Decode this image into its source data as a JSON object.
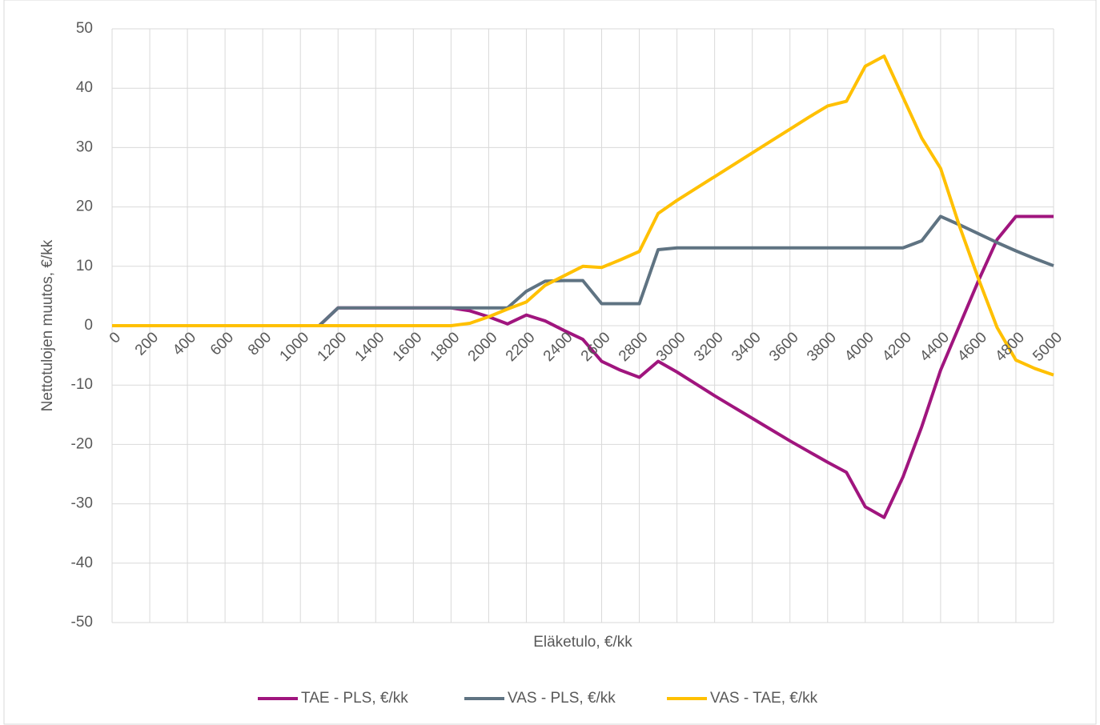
{
  "chart_data": {
    "type": "line",
    "xlabel": "Eläketulo, €/kk",
    "ylabel": "Nettotulojen muutos, €/kk",
    "x": [
      0,
      100,
      200,
      300,
      400,
      500,
      600,
      700,
      800,
      900,
      1000,
      1100,
      1200,
      1300,
      1400,
      1500,
      1600,
      1700,
      1800,
      1900,
      2000,
      2100,
      2200,
      2300,
      2400,
      2500,
      2600,
      2700,
      2800,
      2900,
      3000,
      3100,
      3200,
      3300,
      3400,
      3500,
      3600,
      3700,
      3800,
      3900,
      4000,
      4100,
      4200,
      4300,
      4400,
      4500,
      4600,
      4700,
      4800,
      4900,
      5000
    ],
    "series": [
      {
        "name": "TAE - PLS, €/kk",
        "color": "#a0157e",
        "values": [
          0,
          0,
          0,
          0,
          0,
          0,
          0,
          0,
          0,
          0,
          0,
          0,
          3,
          3,
          3,
          3,
          3,
          3,
          3,
          2.5,
          1.5,
          0.3,
          1.8,
          0.8,
          -0.8,
          -2.3,
          -6,
          -7.5,
          -8.7,
          -6,
          -7.8,
          -9.8,
          -11.8,
          -13.7,
          -15.6,
          -17.5,
          -19.4,
          -21.2,
          -23,
          -24.7,
          -30.5,
          -32.3,
          -25.5,
          -17,
          -7.5,
          0,
          7.5,
          14.5,
          18.4,
          18.4,
          18.4
        ]
      },
      {
        "name": "VAS - PLS, €/kk",
        "color": "#5f7382",
        "values": [
          0,
          0,
          0,
          0,
          0,
          0,
          0,
          0,
          0,
          0,
          0,
          0,
          3,
          3,
          3,
          3,
          3,
          3,
          3,
          3,
          3,
          3,
          5.8,
          7.5,
          7.6,
          7.6,
          3.7,
          3.7,
          3.7,
          12.8,
          13.1,
          13.1,
          13.1,
          13.1,
          13.1,
          13.1,
          13.1,
          13.1,
          13.1,
          13.1,
          13.1,
          13.1,
          13.1,
          14.3,
          18.4,
          17,
          15.5,
          14,
          12.6,
          11.3,
          10.1
        ]
      },
      {
        "name": "VAS - TAE, €/kk",
        "color": "#ffc000",
        "values": [
          0,
          0,
          0,
          0,
          0,
          0,
          0,
          0,
          0,
          0,
          0,
          0,
          0,
          0,
          0,
          0,
          0,
          0,
          0,
          0.4,
          1.5,
          2.8,
          4,
          6.8,
          8.4,
          10,
          9.8,
          11.1,
          12.5,
          18.9,
          21.1,
          23.1,
          25.1,
          27.1,
          29.1,
          31.1,
          33.1,
          35.1,
          37,
          37.8,
          43.7,
          45.4,
          38.5,
          31.6,
          26.5,
          16.8,
          8,
          -0.3,
          -5.8,
          -7.2,
          -8.3
        ]
      }
    ],
    "xlim": [
      0,
      5000
    ],
    "xticks": [
      0,
      200,
      400,
      600,
      800,
      1000,
      1200,
      1400,
      1600,
      1800,
      2000,
      2200,
      2400,
      2600,
      2800,
      3000,
      3200,
      3400,
      3600,
      3800,
      4000,
      4200,
      4400,
      4600,
      4800,
      5000
    ],
    "ylim": [
      -50,
      50
    ],
    "yticks": [
      -50,
      -40,
      -30,
      -20,
      -10,
      0,
      10,
      20,
      30,
      40,
      50
    ],
    "grid": true,
    "legend": "bottom"
  }
}
